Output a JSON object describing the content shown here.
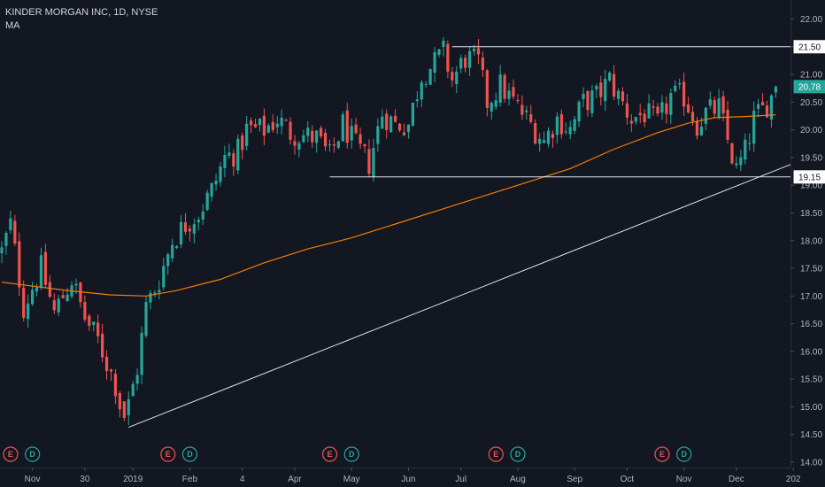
{
  "header": {
    "symbol_line": "KINDER MORGAN INC, 1D, NYSE",
    "indicator": "MA"
  },
  "colors": {
    "background": "#131722",
    "up": "#26a69a",
    "down": "#ef5350",
    "ma": "#f57c00",
    "drawing": "#e0e3eb",
    "last_price_bg": "#26a69a"
  },
  "chart_data": {
    "type": "candlestick",
    "title": "KINDER MORGAN INC, 1D, NYSE",
    "ylim": [
      14.0,
      22.25
    ],
    "y_ticks": [
      "14.00",
      "14.50",
      "15.00",
      "15.50",
      "16.00",
      "16.50",
      "17.00",
      "17.50",
      "18.00",
      "18.50",
      "19.00",
      "19.50",
      "20.00",
      "20.50",
      "21.00",
      "21.50",
      "22.00"
    ],
    "x_ticks": [
      {
        "label": "Nov",
        "index": 7
      },
      {
        "label": "30",
        "index": 19
      },
      {
        "label": "2019",
        "index": 30
      },
      {
        "label": "Feb",
        "index": 43
      },
      {
        "label": "4",
        "index": 55
      },
      {
        "label": "Apr",
        "index": 67
      },
      {
        "label": "May",
        "index": 80
      },
      {
        "label": "Jun",
        "index": 93
      },
      {
        "label": "Jul",
        "index": 105
      },
      {
        "label": "Aug",
        "index": 118
      },
      {
        "label": "Sep",
        "index": 131
      },
      {
        "label": "Oct",
        "index": 143
      },
      {
        "label": "Nov",
        "index": 156
      },
      {
        "label": "Dec",
        "index": 168
      },
      {
        "label": "202",
        "index": 181
      }
    ],
    "bar_count": 186,
    "key_points": [
      [
        0,
        17.8
      ],
      [
        2,
        18.3
      ],
      [
        5,
        16.8
      ],
      [
        9,
        17.5
      ],
      [
        12,
        16.7
      ],
      [
        16,
        17.3
      ],
      [
        19,
        16.6
      ],
      [
        22,
        16.2
      ],
      [
        26,
        15.4
      ],
      [
        28,
        14.7
      ],
      [
        31,
        15.7
      ],
      [
        33,
        16.8
      ],
      [
        36,
        17.3
      ],
      [
        39,
        18.0
      ],
      [
        42,
        18.3
      ],
      [
        45,
        18.5
      ],
      [
        48,
        18.9
      ],
      [
        51,
        19.5
      ],
      [
        54,
        19.6
      ],
      [
        56,
        20.0
      ],
      [
        60,
        20.0
      ],
      [
        63,
        20.2
      ],
      [
        66,
        19.95
      ],
      [
        69,
        19.9
      ],
      [
        72,
        19.85
      ],
      [
        75,
        19.5
      ],
      [
        78,
        20.1
      ],
      [
        81,
        19.7
      ],
      [
        84,
        19.4
      ],
      [
        87,
        20.3
      ],
      [
        90,
        20.1
      ],
      [
        93,
        20.1
      ],
      [
        96,
        21.0
      ],
      [
        99,
        21.2
      ],
      [
        101,
        21.4
      ],
      [
        103,
        20.9
      ],
      [
        106,
        21.3
      ],
      [
        109,
        21.2
      ],
      [
        111,
        20.5
      ],
      [
        114,
        20.8
      ],
      [
        117,
        20.5
      ],
      [
        120,
        20.2
      ],
      [
        124,
        19.8
      ],
      [
        127,
        20.2
      ],
      [
        130,
        20.0
      ],
      [
        133,
        20.5
      ],
      [
        136,
        20.6
      ],
      [
        139,
        20.9
      ],
      [
        141,
        20.6
      ],
      [
        144,
        20.2
      ],
      [
        147,
        20.3
      ],
      [
        150,
        20.1
      ],
      [
        153,
        20.6
      ],
      [
        156,
        20.6
      ],
      [
        159,
        20.1
      ],
      [
        161,
        20.3
      ],
      [
        164,
        20.4
      ],
      [
        166,
        19.8
      ],
      [
        168,
        19.25
      ],
      [
        170,
        19.6
      ],
      [
        172,
        20.2
      ],
      [
        174,
        20.35
      ],
      [
        176,
        20.6
      ],
      [
        177,
        20.78
      ]
    ],
    "moving_average": {
      "name": "MA",
      "points": [
        [
          0,
          17.25
        ],
        [
          15,
          17.1
        ],
        [
          25,
          17.02
        ],
        [
          33,
          17.0
        ],
        [
          40,
          17.1
        ],
        [
          50,
          17.3
        ],
        [
          60,
          17.6
        ],
        [
          70,
          17.85
        ],
        [
          80,
          18.05
        ],
        [
          90,
          18.3
        ],
        [
          100,
          18.55
        ],
        [
          110,
          18.8
        ],
        [
          120,
          19.05
        ],
        [
          130,
          19.3
        ],
        [
          140,
          19.65
        ],
        [
          150,
          19.95
        ],
        [
          157,
          20.12
        ],
        [
          163,
          20.22
        ],
        [
          170,
          20.24
        ],
        [
          177,
          20.27
        ]
      ]
    },
    "drawings": {
      "resistance": {
        "price": 21.5,
        "from_index": 103,
        "label": "21.50"
      },
      "support": {
        "price": 19.15,
        "from_index": 75,
        "label": "19.15"
      },
      "trendline": [
        [
          29,
          14.63
        ],
        [
          186,
          19.55
        ]
      ]
    },
    "last_price": {
      "value": 20.78,
      "label": "20.78"
    },
    "events": [
      {
        "type": "E",
        "index": 1
      },
      {
        "type": "D",
        "index": 6
      },
      {
        "type": "E",
        "index": 37
      },
      {
        "type": "D",
        "index": 42
      },
      {
        "type": "E",
        "index": 74
      },
      {
        "type": "D",
        "index": 79
      },
      {
        "type": "E",
        "index": 112
      },
      {
        "type": "D",
        "index": 117
      },
      {
        "type": "E",
        "index": 150
      },
      {
        "type": "D",
        "index": 155
      }
    ]
  }
}
